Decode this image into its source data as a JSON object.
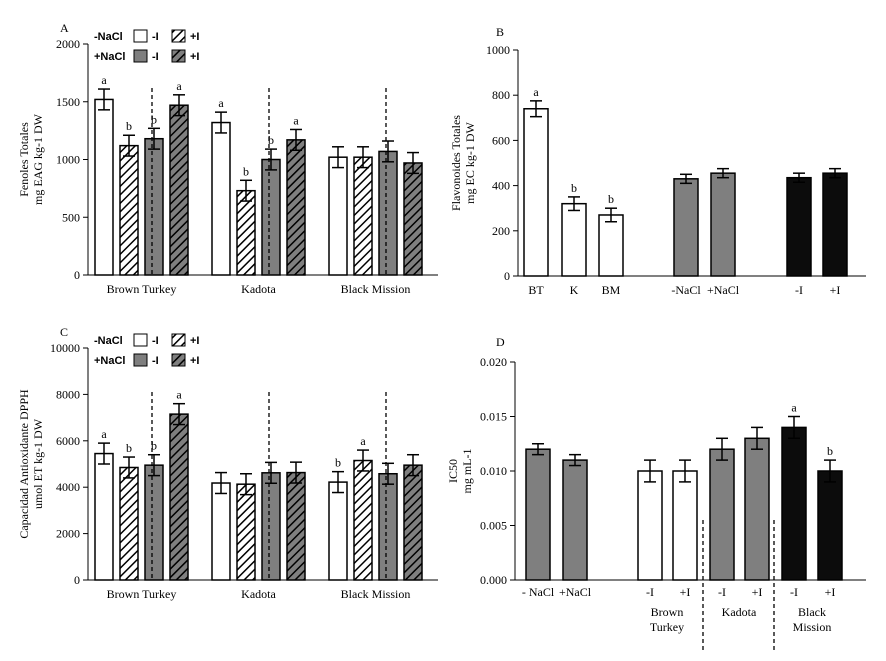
{
  "colors": {
    "white": "#ffffff",
    "gray": "#7f7f7f",
    "black": "#0c0c0c",
    "stroke": "#000000"
  },
  "chart_data": [
    {
      "panel": "A",
      "type": "bar",
      "ylabel": [
        "Fenoles Totales",
        "mg EAG kg-1 DW"
      ],
      "ylim": [
        0,
        2000
      ],
      "yticks": [
        0,
        500,
        1000,
        1500,
        2000
      ],
      "groups": [
        "Brown Turkey",
        "Kadota",
        "Black Mission"
      ],
      "bar_order": [
        "-NaCl -I",
        "-NaCl +I",
        "+NaCl -I",
        "+NaCl +I"
      ],
      "values": [
        [
          1520,
          1120,
          1180,
          1470
        ],
        [
          1320,
          730,
          1000,
          1170
        ],
        [
          1020,
          1020,
          1070,
          970
        ]
      ],
      "errors": [
        [
          90,
          90,
          90,
          90
        ],
        [
          90,
          90,
          90,
          90
        ],
        [
          90,
          90,
          90,
          90
        ]
      ],
      "letters": [
        [
          "a",
          "b",
          "b",
          "a"
        ],
        [
          "a",
          "b",
          "b",
          "a"
        ],
        [
          "",
          "",
          "",
          ""
        ]
      ],
      "legend": {
        "rows": [
          {
            "label": "-NaCl",
            "items": [
              {
                "fill": "white",
                "label": "-I"
              },
              {
                "fill": "white-hatch",
                "label": "+I"
              }
            ]
          },
          {
            "label": "+NaCl",
            "items": [
              {
                "fill": "gray",
                "label": "-I"
              },
              {
                "fill": "gray-hatch",
                "label": "+I"
              }
            ]
          }
        ]
      }
    },
    {
      "panel": "B",
      "type": "bar",
      "ylabel": [
        "Flavonoides Totales",
        "mg EC kg-1 DW"
      ],
      "ylim": [
        0,
        1000
      ],
      "yticks": [
        0,
        200,
        400,
        600,
        800,
        1000
      ],
      "bars": [
        {
          "label": "BT",
          "value": 740,
          "error": 35,
          "fill": "white",
          "letter": "a"
        },
        {
          "label": "K",
          "value": 320,
          "error": 30,
          "fill": "white",
          "letter": "b"
        },
        {
          "label": "BM",
          "value": 270,
          "error": 30,
          "fill": "white",
          "letter": "b"
        },
        {
          "label": "-NaCl",
          "value": 430,
          "error": 20,
          "fill": "gray",
          "letter": ""
        },
        {
          "label": "+NaCl",
          "value": 455,
          "error": 20,
          "fill": "gray",
          "letter": ""
        },
        {
          "label": "-I",
          "value": 435,
          "error": 20,
          "fill": "black",
          "letter": ""
        },
        {
          "label": "+I",
          "value": 455,
          "error": 20,
          "fill": "black",
          "letter": ""
        }
      ]
    },
    {
      "panel": "C",
      "type": "bar",
      "ylabel": [
        "Capacidad Antioxidante DPPH",
        "umol ET kg-1 DW"
      ],
      "ylim": [
        0,
        10000
      ],
      "yticks": [
        0,
        2000,
        4000,
        6000,
        8000,
        10000
      ],
      "groups": [
        "Brown Turkey",
        "Kadota",
        "Black Mission"
      ],
      "bar_order": [
        "-NaCl -I",
        "-NaCl +I",
        "+NaCl -I",
        "+NaCl +I"
      ],
      "values": [
        [
          5450,
          4850,
          4950,
          7150
        ],
        [
          4180,
          4130,
          4620,
          4630
        ],
        [
          4220,
          5150,
          4580,
          4950
        ]
      ],
      "errors": [
        [
          450,
          450,
          450,
          450
        ],
        [
          450,
          450,
          450,
          450
        ],
        [
          450,
          450,
          450,
          450
        ]
      ],
      "letters": [
        [
          "a",
          "b",
          "b",
          "a"
        ],
        [
          "",
          "",
          "",
          ""
        ],
        [
          "b",
          "a",
          "",
          ""
        ]
      ],
      "legend": {
        "rows": [
          {
            "label": "-NaCl",
            "items": [
              {
                "fill": "white",
                "label": "-I"
              },
              {
                "fill": "white-hatch",
                "label": "+I"
              }
            ]
          },
          {
            "label": "+NaCl",
            "items": [
              {
                "fill": "gray",
                "label": "-I"
              },
              {
                "fill": "gray-hatch",
                "label": "+I"
              }
            ]
          }
        ]
      }
    },
    {
      "panel": "D",
      "type": "bar",
      "ylabel": [
        "IC50",
        "mg mL-1"
      ],
      "ylim": [
        0,
        0.02
      ],
      "yticks": [
        "0.000",
        "0.005",
        "0.010",
        "0.015",
        "0.020"
      ],
      "bars": [
        {
          "label": "- NaCl",
          "value": 0.012,
          "error": 0.0005,
          "fill": "gray",
          "letter": ""
        },
        {
          "label": "+NaCl",
          "value": 0.011,
          "error": 0.0005,
          "fill": "gray",
          "letter": ""
        },
        {
          "label": "-I",
          "value": 0.01,
          "error": 0.001,
          "fill": "white",
          "letter": ""
        },
        {
          "label": "+I",
          "value": 0.01,
          "error": 0.001,
          "fill": "white",
          "letter": ""
        },
        {
          "label": "-I",
          "value": 0.012,
          "error": 0.001,
          "fill": "gray",
          "letter": ""
        },
        {
          "label": "+I",
          "value": 0.013,
          "error": 0.001,
          "fill": "gray",
          "letter": ""
        },
        {
          "label": "-I",
          "value": 0.014,
          "error": 0.001,
          "fill": "black",
          "letter": "a"
        },
        {
          "label": "+I",
          "value": 0.01,
          "error": 0.001,
          "fill": "black",
          "letter": "b"
        }
      ],
      "group_labels": [
        [
          "Brown",
          "Turkey"
        ],
        [
          "Kadota"
        ],
        [
          "Black",
          "Mission"
        ]
      ]
    }
  ]
}
